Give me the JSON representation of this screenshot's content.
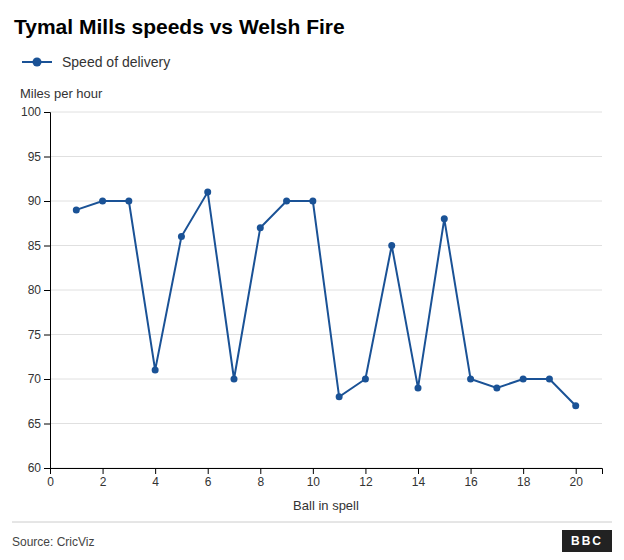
{
  "chart_data": {
    "type": "line",
    "title": "Tymal Mills speeds vs Welsh Fire",
    "xlabel": "Ball in spell",
    "ylabel": "Miles per hour",
    "annotations": [
      "Source: CricViz",
      "BBC"
    ],
    "x": [
      1,
      2,
      3,
      4,
      5,
      6,
      7,
      8,
      9,
      10,
      11,
      12,
      13,
      14,
      15,
      16,
      17,
      18,
      19,
      20
    ],
    "series": [
      {
        "name": "Speed of delivery",
        "color": "#1a5296",
        "marker": "circle",
        "line_style": "solid",
        "values": [
          89,
          90,
          90,
          71,
          86,
          91,
          70,
          87,
          90,
          90,
          68,
          70,
          85,
          69,
          88,
          70,
          69,
          70,
          70,
          67
        ]
      }
    ],
    "xlim": [
      0,
      21
    ],
    "xticks": [
      0,
      2,
      4,
      6,
      8,
      10,
      12,
      14,
      16,
      18,
      20
    ],
    "ylim": [
      60,
      100
    ],
    "yticks": [
      60,
      65,
      70,
      75,
      80,
      85,
      90,
      95,
      100
    ],
    "grid": true,
    "legend": "top"
  }
}
